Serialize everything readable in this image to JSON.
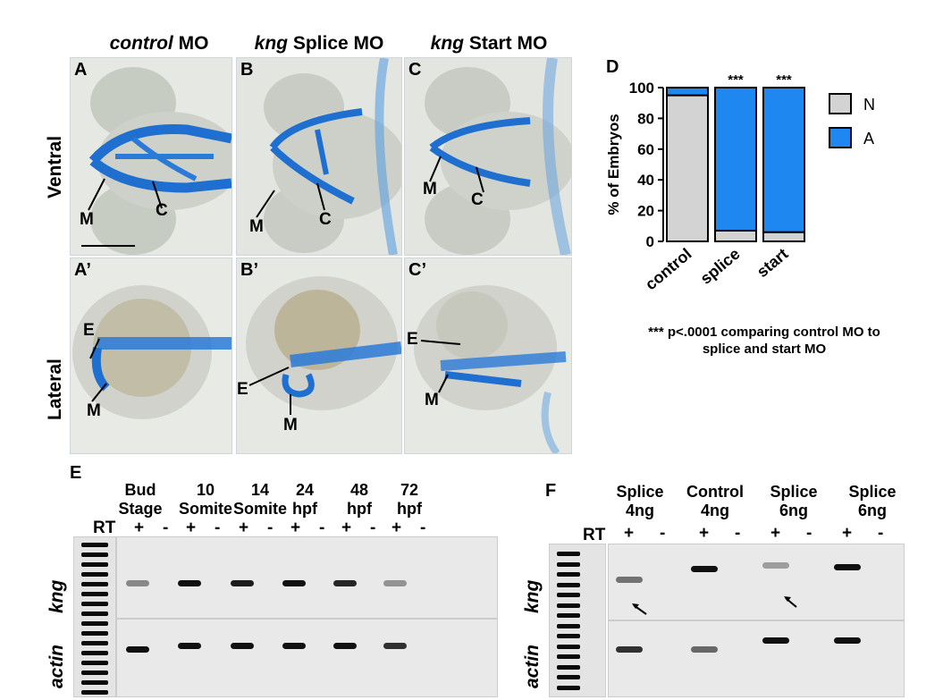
{
  "columns": {
    "control": {
      "italic": "control",
      "rest": " MO"
    },
    "splice": {
      "italic": "kng",
      "rest": " Splice MO"
    },
    "start": {
      "italic": "kng",
      "rest": " Start MO"
    }
  },
  "rows": {
    "ventral": "Ventral",
    "lateral": "Lateral"
  },
  "panel_labels": [
    "A",
    "B",
    "C",
    "A’",
    "B’",
    "C’",
    "D",
    "E",
    "F"
  ],
  "annotations": {
    "M": "M",
    "C": "C",
    "E": "E"
  },
  "chart_data": {
    "type": "bar",
    "stacked": true,
    "categories": [
      "control",
      "splice",
      "start"
    ],
    "series": [
      {
        "name": "N",
        "values": [
          95,
          7,
          6
        ],
        "color": "#d3d3d3"
      },
      {
        "name": "A",
        "values": [
          5,
          93,
          94
        ],
        "color": "#1e88f0"
      }
    ],
    "ylabel": "% of Embryos",
    "ylim": [
      0,
      100
    ],
    "yticks": [
      "0",
      "20",
      "40",
      "60",
      "80",
      "100"
    ],
    "significance": [
      "",
      "***",
      "***"
    ],
    "legend": "right",
    "footnote_line1": "*** p<.0001 comparing control MO to",
    "footnote_line2": "splice and start MO"
  },
  "gel_e": {
    "rt_label": "RT",
    "lanes": [
      {
        "line1": "Bud",
        "line2": "Stage"
      },
      {
        "line1": "10",
        "line2": "Somite"
      },
      {
        "line1": "14",
        "line2": "Somite"
      },
      {
        "line1": "24",
        "line2": "hpf"
      },
      {
        "line1": "48",
        "line2": "hpf"
      },
      {
        "line1": "72",
        "line2": "hpf"
      }
    ],
    "plus": "+",
    "minus": "-",
    "gene1": "kng",
    "gene2": "actin"
  },
  "gel_f": {
    "rt_label": "RT",
    "lanes": [
      {
        "line1": "Splice",
        "line2": "4ng"
      },
      {
        "line1": "Control",
        "line2": "4ng"
      },
      {
        "line1": "Splice",
        "line2": "6ng"
      },
      {
        "line1": "Splice",
        "line2": "6ng"
      }
    ],
    "plus": "+",
    "minus": "-",
    "gene1": "kng",
    "gene2": "actin"
  },
  "colors": {
    "stain_blue": "#1e6fd0",
    "tissue": "#c9cdc4",
    "gel_bg": "#e9e9e9"
  }
}
